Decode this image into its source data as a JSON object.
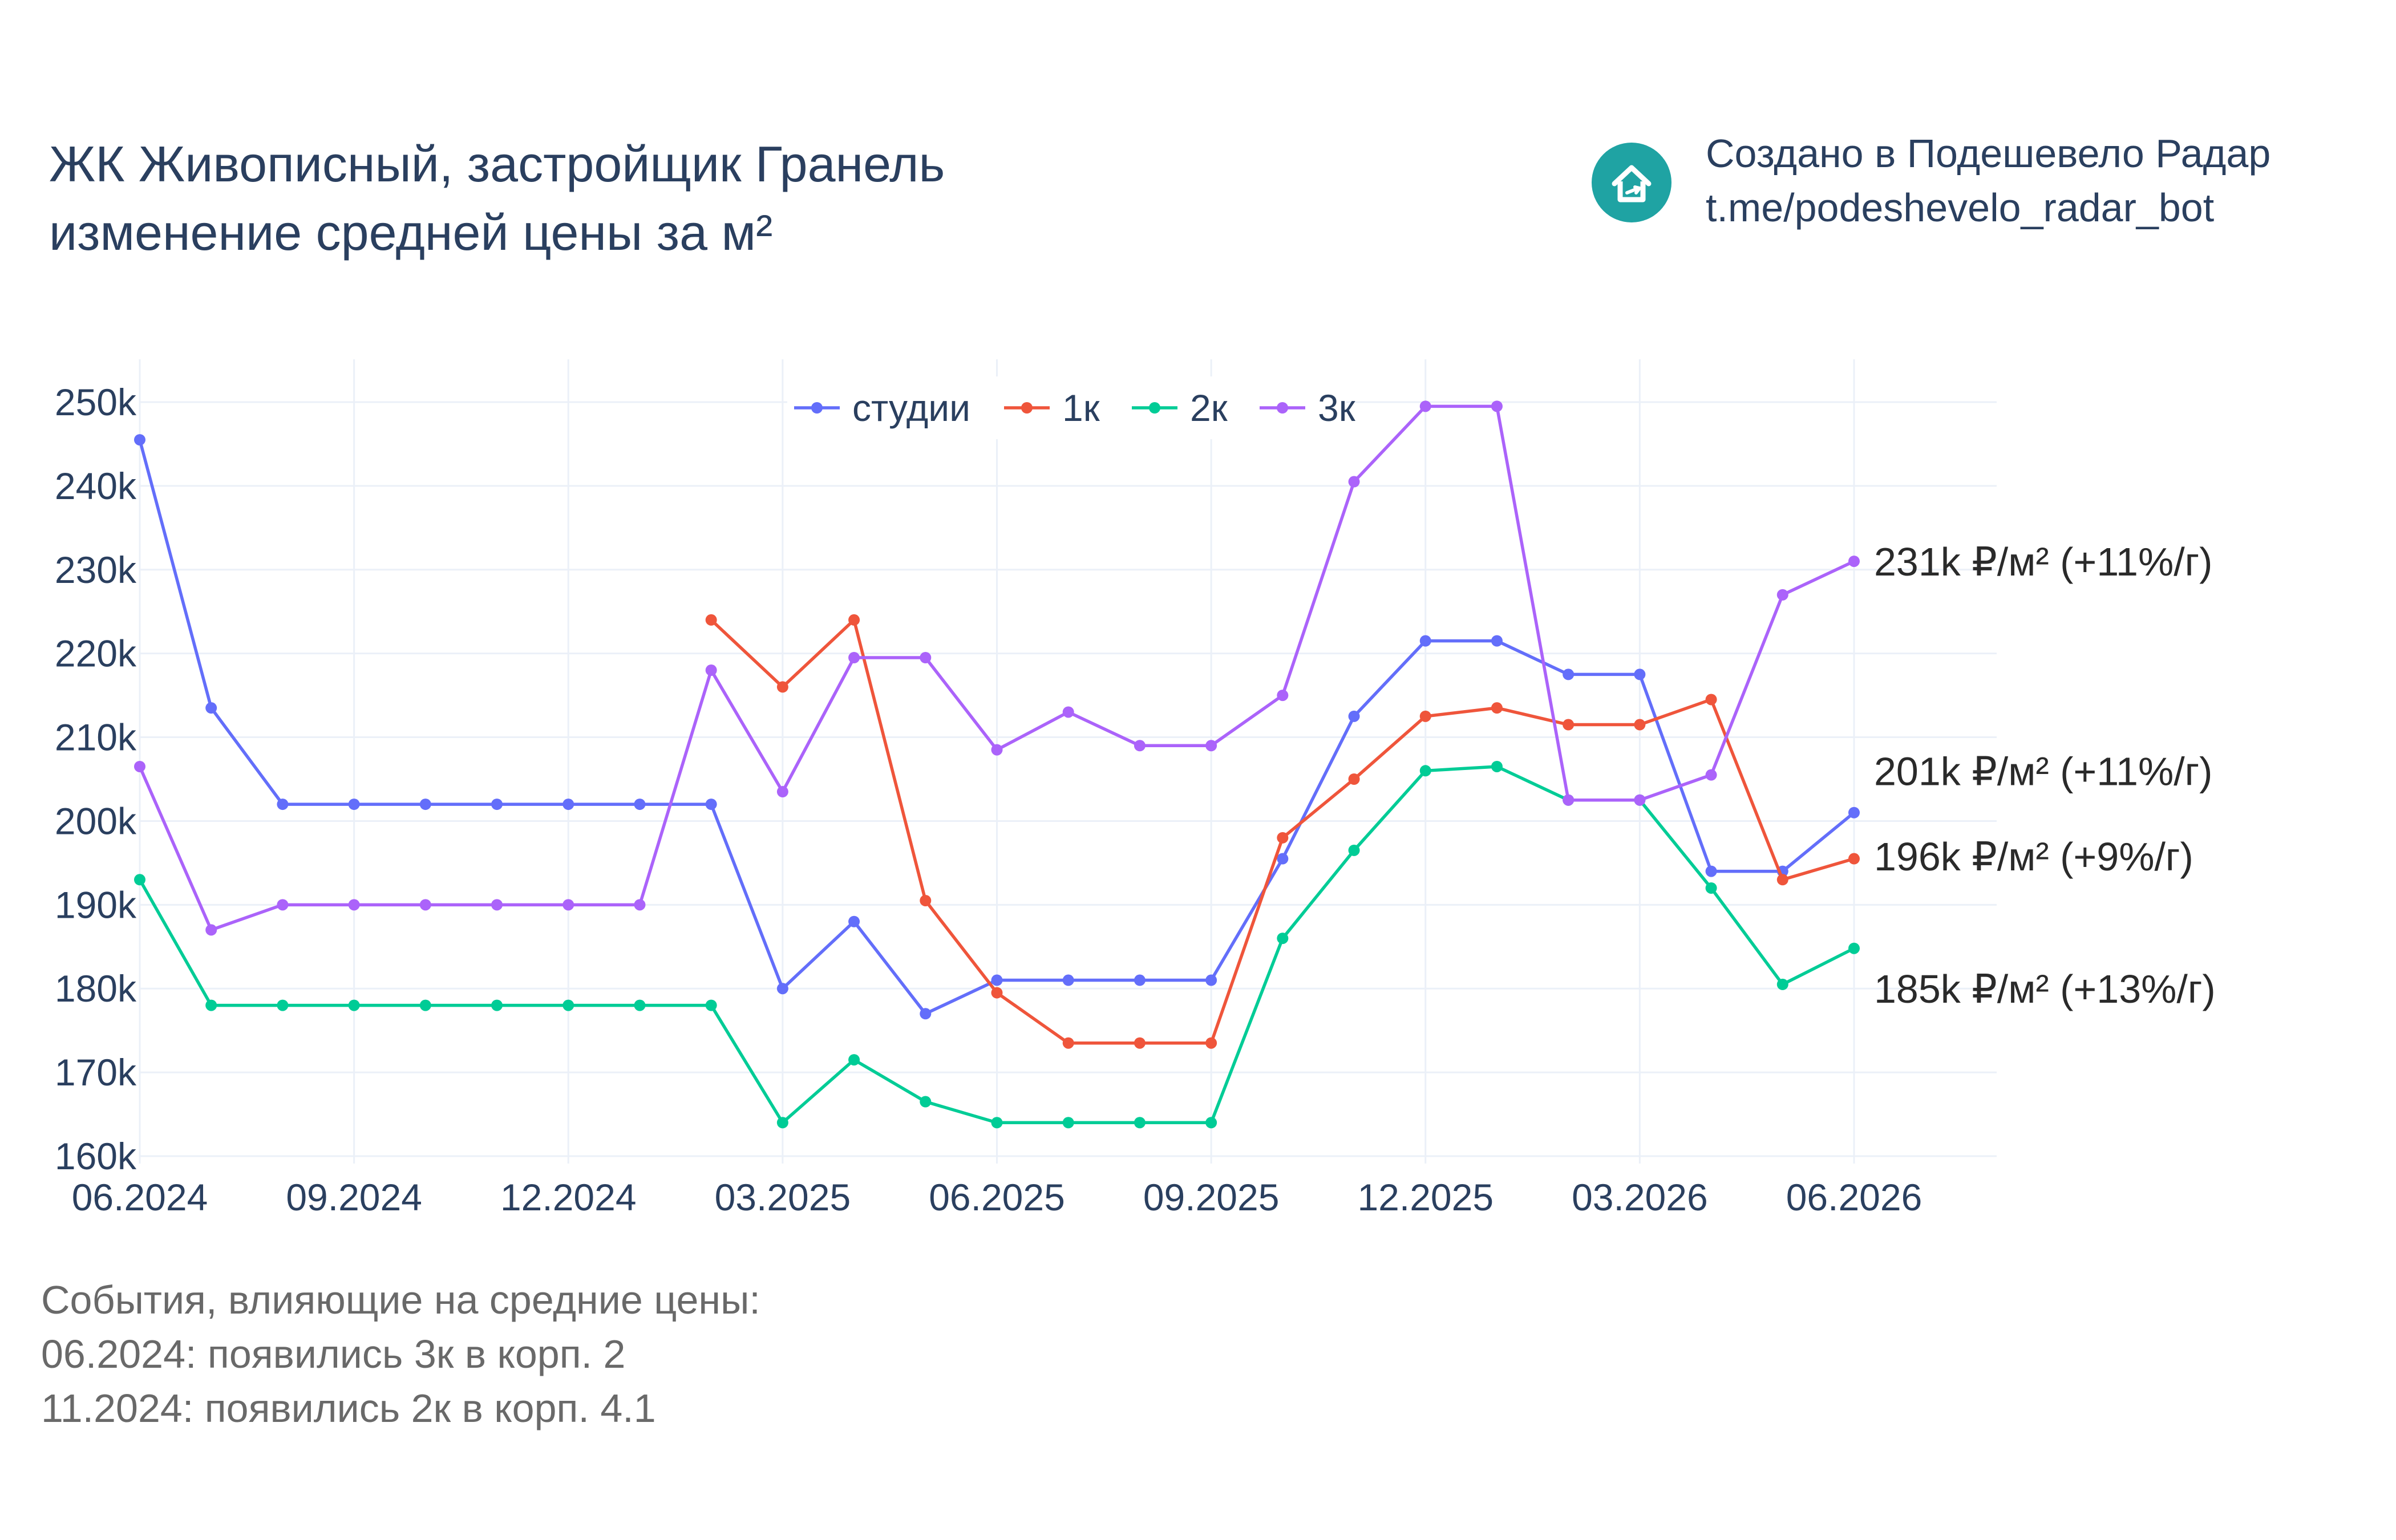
{
  "title": {
    "line1": "ЖК Живописный, застройщик Гранель",
    "line2": "изменение средней цены за м²"
  },
  "credit": {
    "icon": "house-logo-icon",
    "line1": "Создано в Подешевело Радар",
    "line2": "t.me/podeshevelo_radar_bot"
  },
  "events": {
    "heading": "События, влияющие на средние цены:",
    "items": [
      "06.2024: появились 3к в корп. 2",
      "11.2024: появились 2к в корп. 4.1"
    ]
  },
  "chart_data": {
    "type": "line",
    "x": [
      "06.2024",
      "07.2024",
      "08.2024",
      "09.2024",
      "10.2024",
      "11.2024",
      "12.2024",
      "01.2025",
      "02.2025",
      "03.2025",
      "04.2025",
      "05.2025",
      "06.2025",
      "07.2025",
      "08.2025",
      "09.2025",
      "10.2025",
      "11.2025",
      "12.2025",
      "01.2026",
      "02.2026",
      "03.2026",
      "04.2026",
      "05.2026",
      "06.2026"
    ],
    "x_ticks": [
      "06.2024",
      "09.2024",
      "12.2024",
      "03.2025",
      "06.2025",
      "09.2025",
      "12.2025",
      "03.2026",
      "06.2026"
    ],
    "y_ticks": [
      "160k",
      "170k",
      "180k",
      "190k",
      "200k",
      "210k",
      "220k",
      "230k",
      "240k",
      "250k"
    ],
    "y_tick_values": [
      160,
      170,
      180,
      190,
      200,
      210,
      220,
      230,
      240,
      250
    ],
    "ylim": [
      158,
      255
    ],
    "grid": true,
    "legend_position": "top-center",
    "series": [
      {
        "name": "студии",
        "color": "#636efa",
        "values": [
          245.5,
          213.5,
          202,
          202,
          202,
          202,
          202,
          202,
          202,
          180,
          188,
          177,
          181,
          181,
          181,
          181,
          195.5,
          212.5,
          221.5,
          221.5,
          217.5,
          217.5,
          194,
          194,
          201
        ]
      },
      {
        "name": "1к",
        "color": "#ef553b",
        "values": [
          null,
          null,
          null,
          null,
          null,
          null,
          null,
          null,
          224,
          216,
          224,
          190.5,
          179.5,
          173.5,
          173.5,
          173.5,
          198,
          205,
          212.5,
          213.5,
          211.5,
          211.5,
          214.5,
          193,
          195.5
        ]
      },
      {
        "name": "2к",
        "color": "#00cc96",
        "values": [
          193,
          178,
          178,
          178,
          178,
          178,
          178,
          178,
          178,
          164,
          171.5,
          166.5,
          164,
          164,
          164,
          164,
          186,
          196.5,
          206,
          206.5,
          202.5,
          202.5,
          192,
          180.5,
          184.8
        ]
      },
      {
        "name": "3к",
        "color": "#ab63fa",
        "values": [
          206.5,
          187,
          190,
          190,
          190,
          190,
          190,
          190,
          218,
          203.5,
          219.5,
          219.5,
          208.5,
          213,
          209,
          209,
          215,
          240.5,
          249.5,
          249.5,
          202.5,
          202.5,
          205.5,
          227,
          231
        ]
      }
    ],
    "end_labels": [
      {
        "series": "3к",
        "text": "231k ₽/м² (+11%/г)",
        "value": 231
      },
      {
        "series": "студии",
        "text": "201k ₽/м² (+11%/г)",
        "value": 206
      },
      {
        "series": "1к",
        "text": "196k ₽/м² (+9%/г)",
        "value": 195.8
      },
      {
        "series": "2к",
        "text": "185k ₽/м² (+13%/г)",
        "value": 180
      }
    ]
  }
}
